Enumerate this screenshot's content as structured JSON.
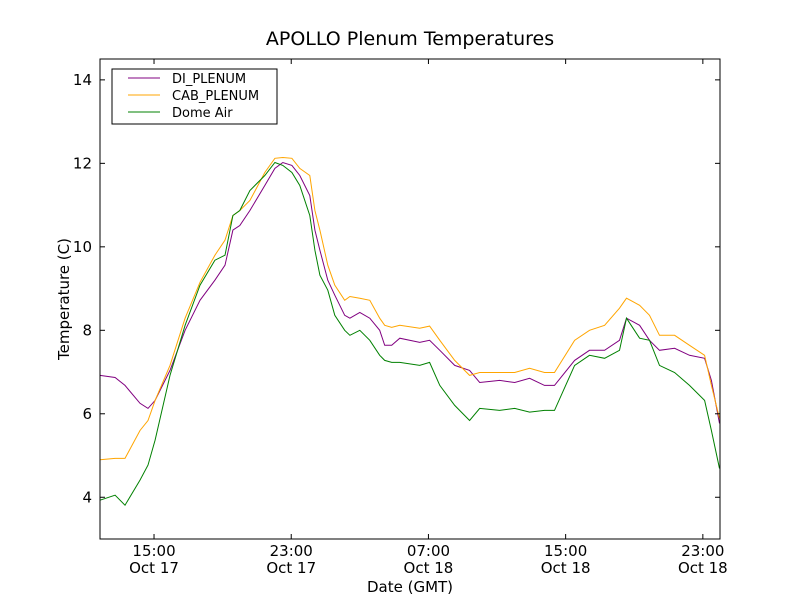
{
  "chart_data": {
    "type": "line",
    "title": "APOLLO Plenum Temperatures",
    "xlabel": "Date (GMT)",
    "ylabel": "Temperature (C)",
    "x_units": "hours since Oct 17 00:00 GMT",
    "xlim": [
      11.85,
      48.0
    ],
    "ylim": [
      3,
      14.5
    ],
    "yticks": [
      4,
      6,
      8,
      10,
      12,
      14
    ],
    "xticks": [
      {
        "value": 15,
        "time": "15:00",
        "date": "Oct 17"
      },
      {
        "value": 23,
        "time": "23:00",
        "date": "Oct 17"
      },
      {
        "value": 31,
        "time": "07:00",
        "date": "Oct 18"
      },
      {
        "value": 39,
        "time": "15:00",
        "date": "Oct 18"
      },
      {
        "value": 47,
        "time": "23:00",
        "date": "Oct 18"
      }
    ],
    "grid": false,
    "legend_position": "top-left",
    "x": [
      11.85,
      12.73,
      13.31,
      14.18,
      14.65,
      15.06,
      15.93,
      16.81,
      17.68,
      18.55,
      19.14,
      19.6,
      20.0,
      20.59,
      21.46,
      22.05,
      22.51,
      23.04,
      23.5,
      24.08,
      24.38,
      24.67,
      25.13,
      25.54,
      26.12,
      26.42,
      27.0,
      27.58,
      28.16,
      28.45,
      28.86,
      29.33,
      30.49,
      31.07,
      31.66,
      32.53,
      33.4,
      33.99,
      35.15,
      36.03,
      36.9,
      37.77,
      38.35,
      39.52,
      40.39,
      41.27,
      42.14,
      42.55,
      43.31,
      43.89,
      44.47,
      45.35,
      46.22,
      47.1,
      47.5,
      47.97
    ],
    "series": [
      {
        "name": "DI_PLENUM",
        "color": "#800080",
        "values": [
          6.92,
          6.87,
          6.68,
          6.25,
          6.13,
          6.32,
          7.04,
          8.0,
          8.72,
          9.2,
          9.56,
          10.4,
          10.51,
          10.87,
          11.47,
          11.88,
          12.02,
          11.95,
          11.71,
          11.23,
          10.4,
          9.92,
          9.2,
          8.84,
          8.36,
          8.29,
          8.43,
          8.29,
          8.0,
          7.64,
          7.64,
          7.81,
          7.71,
          7.76,
          7.52,
          7.16,
          7.04,
          6.75,
          6.8,
          6.75,
          6.85,
          6.68,
          6.68,
          7.28,
          7.52,
          7.52,
          7.76,
          8.29,
          8.12,
          7.76,
          7.52,
          7.57,
          7.4,
          7.33,
          6.8,
          5.77
        ]
      },
      {
        "name": "CAB_PLENUM",
        "color": "#ffa500",
        "values": [
          4.9,
          4.93,
          4.93,
          5.6,
          5.84,
          6.32,
          7.16,
          8.29,
          9.15,
          9.8,
          10.16,
          10.75,
          10.87,
          11.11,
          11.78,
          12.12,
          12.14,
          12.12,
          11.88,
          11.71,
          10.87,
          10.4,
          9.56,
          9.08,
          8.72,
          8.81,
          8.77,
          8.72,
          8.29,
          8.12,
          8.07,
          8.12,
          8.05,
          8.1,
          7.76,
          7.28,
          6.92,
          6.99,
          6.99,
          6.99,
          7.09,
          6.99,
          6.99,
          7.76,
          8.0,
          8.12,
          8.53,
          8.77,
          8.6,
          8.36,
          7.88,
          7.88,
          7.64,
          7.4,
          6.68,
          5.89
        ]
      },
      {
        "name": "Dome Air",
        "color": "#008000",
        "values": [
          3.93,
          4.05,
          3.81,
          4.41,
          4.77,
          5.37,
          6.92,
          8.12,
          9.08,
          9.68,
          9.8,
          10.75,
          10.87,
          11.35,
          11.71,
          12.02,
          11.95,
          11.78,
          11.47,
          10.75,
          9.92,
          9.32,
          8.96,
          8.36,
          8.0,
          7.88,
          8.0,
          7.76,
          7.4,
          7.28,
          7.23,
          7.23,
          7.16,
          7.23,
          6.68,
          6.2,
          5.84,
          6.13,
          6.08,
          6.13,
          6.04,
          6.08,
          6.08,
          7.16,
          7.4,
          7.33,
          7.52,
          8.29,
          7.81,
          7.76,
          7.16,
          6.99,
          6.68,
          6.32,
          5.6,
          4.69
        ]
      }
    ]
  }
}
